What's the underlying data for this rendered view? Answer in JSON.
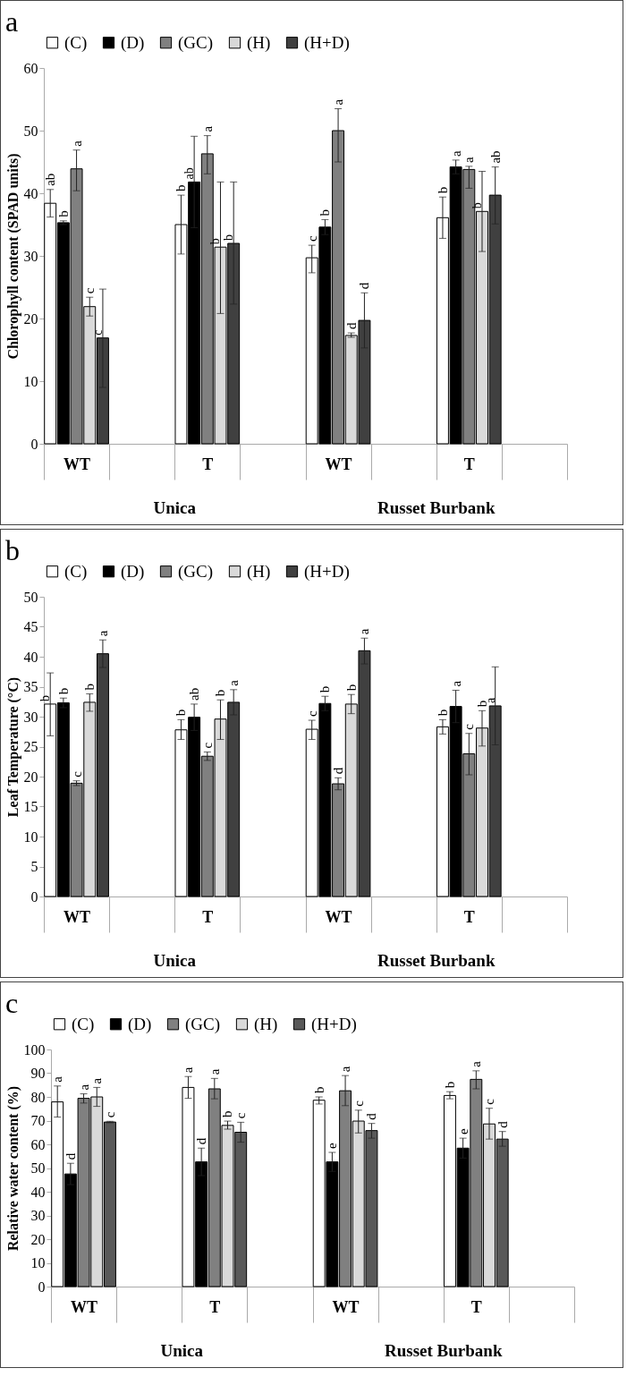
{
  "chart_data": [
    {
      "type": "bar",
      "title": "a",
      "ylabel": "Chlorophyll content (SPAD units)",
      "categories": [
        "WT",
        null,
        "T",
        null,
        "WT",
        null,
        "T",
        null
      ],
      "ylim": [
        0,
        60
      ],
      "yticks": [
        0,
        10,
        20,
        30,
        40,
        50,
        60
      ],
      "legend": "top",
      "annotations": [
        "Unica",
        "Russet Burbank"
      ],
      "series": [
        {
          "name": "(C)",
          "color": "#ffffff",
          "values": [
            38.4,
            null,
            35.0,
            null,
            29.7,
            null,
            36.1,
            null
          ],
          "errors": [
            [
              36.2,
              40.6
            ],
            null,
            [
              30.3,
              39.7
            ],
            null,
            [
              27.3,
              31.7
            ],
            null,
            [
              32.8,
              39.4
            ],
            null
          ],
          "value_labels": [
            "ab",
            null,
            "b",
            null,
            "c",
            null,
            "b",
            null
          ]
        },
        {
          "name": "(D)",
          "color": "#000000",
          "values": [
            35.3,
            null,
            41.8,
            null,
            34.6,
            null,
            44.2,
            null
          ],
          "errors": [
            0.3,
            null,
            7.3,
            null,
            1.2,
            null,
            1.1,
            null
          ],
          "value_labels": [
            "b",
            null,
            "ab",
            null,
            "b",
            null,
            "a",
            null
          ]
        },
        {
          "name": "(GC)",
          "color": "#808080",
          "values": [
            43.9,
            null,
            46.3,
            null,
            50.0,
            null,
            43.8,
            null
          ],
          "errors": [
            [
              40.4,
              46.9
            ],
            null,
            [
              43.1,
              49.2
            ],
            null,
            [
              45.0,
              53.5
            ],
            null,
            [
              40.8,
              44.3
            ],
            null
          ],
          "value_labels": [
            "a",
            null,
            "a",
            null,
            "a",
            null,
            "a",
            null
          ]
        },
        {
          "name": "(H)",
          "color": "#d9d9d9",
          "values": [
            21.9,
            null,
            31.4,
            null,
            17.3,
            null,
            37.1,
            null
          ],
          "errors": [
            [
              20.4,
              23.4
            ],
            null,
            [
              20.8,
              41.8
            ],
            null,
            [
              17.0,
              17.7
            ],
            null,
            [
              30.7,
              43.5
            ],
            null
          ],
          "value_labels": [
            "c",
            null,
            "b",
            null,
            "d",
            null,
            "b",
            null
          ]
        },
        {
          "name": "(H+D)",
          "color": "#404040",
          "values": [
            16.9,
            null,
            32.0,
            null,
            19.7,
            null,
            39.7,
            null
          ],
          "errors": [
            [
              9.0,
              24.7
            ],
            null,
            [
              22.3,
              41.8
            ],
            null,
            [
              15.3,
              24.1
            ],
            null,
            [
              35.1,
              44.2
            ],
            null
          ],
          "value_labels": [
            "c",
            null,
            "b",
            null,
            "d",
            null,
            "ab",
            null
          ]
        }
      ]
    },
    {
      "type": "bar",
      "title": "b",
      "ylabel": "Leaf Temperature (°C)",
      "categories": [
        "WT",
        null,
        "T",
        null,
        "WT",
        null,
        "T",
        null
      ],
      "ylim": [
        0,
        50
      ],
      "yticks": [
        0,
        5,
        10,
        15,
        20,
        25,
        30,
        35,
        40,
        45,
        50
      ],
      "legend": "top",
      "annotations": [
        "Unica",
        "Russet Burbank"
      ],
      "series": [
        {
          "name": "(C)",
          "color": "#ffffff",
          "values": [
            32.1,
            null,
            27.8,
            null,
            27.9,
            null,
            28.3,
            null
          ],
          "errors": [
            [
              26.8,
              37.3
            ],
            null,
            [
              26.2,
              29.5
            ],
            null,
            [
              26.2,
              29.4
            ],
            null,
            [
              27.1,
              29.5
            ],
            null
          ],
          "value_labels": [
            "b",
            null,
            "b",
            null,
            "c",
            null,
            "b",
            null
          ]
        },
        {
          "name": "(D)",
          "color": "#000000",
          "values": [
            32.3,
            null,
            29.9,
            null,
            32.2,
            null,
            31.7,
            null
          ],
          "errors": [
            0.8,
            null,
            2.2,
            null,
            1.2,
            null,
            2.7,
            null
          ],
          "value_labels": [
            "b",
            null,
            "ab",
            null,
            "b",
            null,
            "a",
            null
          ]
        },
        {
          "name": "(GC)",
          "color": "#808080",
          "values": [
            18.9,
            null,
            23.4,
            null,
            18.8,
            null,
            23.8,
            null
          ],
          "errors": [
            [
              18.5,
              19.3
            ],
            null,
            [
              22.7,
              24.1
            ],
            null,
            [
              17.8,
              19.8
            ],
            null,
            [
              20.3,
              27.2
            ],
            null
          ],
          "value_labels": [
            "c",
            null,
            "c",
            null,
            "d",
            null,
            "c",
            null
          ]
        },
        {
          "name": "(H)",
          "color": "#d9d9d9",
          "values": [
            32.4,
            null,
            29.6,
            null,
            32.1,
            null,
            28.1,
            null
          ],
          "errors": [
            [
              30.9,
              33.8
            ],
            null,
            [
              26.2,
              32.8
            ],
            null,
            [
              30.5,
              33.7
            ],
            null,
            [
              25.1,
              31.0
            ],
            null
          ],
          "value_labels": [
            "b",
            null,
            "b",
            null,
            "b",
            null,
            "b",
            null
          ]
        },
        {
          "name": "(H+D)",
          "color": "#404040",
          "values": [
            40.5,
            null,
            32.4,
            null,
            41.0,
            null,
            31.8,
            null
          ],
          "errors": [
            [
              38.2,
              42.8
            ],
            null,
            [
              30.3,
              34.5
            ],
            null,
            [
              38.8,
              43.1
            ],
            null,
            [
              25.3,
              38.3
            ],
            null
          ],
          "value_labels": [
            "a",
            null,
            "a",
            null,
            "a",
            null,
            "a",
            null
          ]
        }
      ]
    },
    {
      "type": "bar",
      "title": "c",
      "ylabel": "Relative water content (%)",
      "categories": [
        "WT",
        null,
        "T",
        null,
        "WT",
        null,
        "T",
        null
      ],
      "ylim": [
        0,
        100
      ],
      "yticks": [
        0,
        10,
        20,
        30,
        40,
        50,
        60,
        70,
        80,
        90,
        100
      ],
      "legend": "top",
      "annotations": [
        "Unica",
        "Russet Burbank"
      ],
      "series": [
        {
          "name": "(C)",
          "color": "#ffffff",
          "values": [
            77.9,
            null,
            84.0,
            null,
            78.6,
            null,
            80.6,
            null
          ],
          "errors": [
            [
              71.5,
              84.6
            ],
            null,
            [
              79.4,
              88.6
            ],
            null,
            [
              77.0,
              80.0
            ],
            null,
            [
              79.2,
              82.2
            ],
            null
          ],
          "value_labels": [
            "a",
            null,
            "a",
            null,
            "b",
            null,
            "b",
            null
          ]
        },
        {
          "name": "(D)",
          "color": "#000000",
          "values": [
            47.5,
            null,
            52.6,
            null,
            52.6,
            null,
            58.4,
            null
          ],
          "errors": [
            4.5,
            null,
            5.8,
            null,
            4.0,
            null,
            4.2,
            null
          ],
          "value_labels": [
            "d",
            null,
            "d",
            null,
            "e",
            null,
            "e",
            null
          ]
        },
        {
          "name": "(GC)",
          "color": "#808080",
          "values": [
            79.4,
            null,
            83.4,
            null,
            82.6,
            null,
            87.4,
            null
          ],
          "errors": [
            [
              77.4,
              81.3
            ],
            null,
            [
              79.2,
              87.8
            ],
            null,
            [
              76.3,
              89.0
            ],
            null,
            [
              83.4,
              91.0
            ],
            null
          ],
          "value_labels": [
            "a",
            null,
            "a",
            null,
            "a",
            null,
            "a",
            null
          ]
        },
        {
          "name": "(H)",
          "color": "#d9d9d9",
          "values": [
            80.0,
            null,
            68.0,
            null,
            69.8,
            null,
            68.6,
            null
          ],
          "errors": [
            [
              76.0,
              84.0
            ],
            null,
            [
              66.4,
              69.8
            ],
            null,
            [
              64.8,
              74.4
            ],
            null,
            [
              62.2,
              75.2
            ],
            null
          ],
          "value_labels": [
            "a",
            null,
            "b",
            null,
            "c",
            null,
            "c",
            null
          ]
        },
        {
          "name": "(H+D)",
          "color": "#595959",
          "values": [
            69.4,
            null,
            65.1,
            null,
            65.8,
            null,
            62.2,
            null
          ],
          "errors": [
            [
              69.1,
              69.7
            ],
            null,
            [
              60.9,
              69.3
            ],
            null,
            [
              62.6,
              68.8
            ],
            null,
            [
              59.2,
              65.4
            ],
            null
          ],
          "value_labels": [
            "c",
            null,
            "c",
            null,
            "d",
            null,
            "d",
            null
          ]
        }
      ]
    }
  ]
}
